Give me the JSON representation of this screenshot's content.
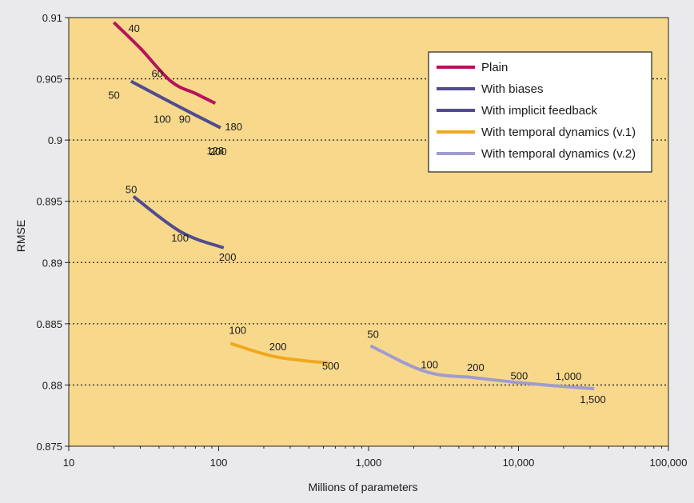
{
  "chart_data": {
    "type": "line",
    "title": "",
    "xlabel": "Millions of parameters",
    "ylabel": "RMSE",
    "xscale": "log",
    "xlim": [
      10,
      100000
    ],
    "ylim": [
      0.875,
      0.91
    ],
    "x_ticks": [
      10,
      100,
      1000,
      10000,
      100000
    ],
    "x_tick_labels": [
      "10",
      "100",
      "1,000",
      "10,000",
      "100,000"
    ],
    "y_ticks": [
      0.875,
      0.88,
      0.885,
      0.89,
      0.895,
      0.9,
      0.905,
      0.91
    ],
    "y_tick_labels": [
      "0.875",
      "0.88",
      "0.885",
      "0.89",
      "0.895",
      "0.9",
      "0.905",
      "0.91"
    ],
    "grid": "horizontal dotted",
    "legend_position": "top-right",
    "colors": {
      "plot_bg": "#f8d98c",
      "page_bg": "#eaeaec",
      "gridline": "#222222",
      "axis": "#222222"
    },
    "series": [
      {
        "name": "Plain",
        "color": "#b5135a",
        "x": [
          20,
          30,
          48,
          70,
          95
        ],
        "y": [
          0.9096,
          0.9075,
          0.9048,
          0.9038,
          0.903
        ],
        "labels": [
          "40",
          "60",
          "90",
          "128",
          "180"
        ]
      },
      {
        "name": "With biases",
        "color": "#524b8e",
        "x": [
          26,
          57,
          103
        ],
        "y": [
          0.9048,
          0.9026,
          0.901
        ],
        "labels": [
          "50",
          "100",
          "200"
        ]
      },
      {
        "name": "With implicit feedback",
        "color": "#524b8e",
        "x": [
          27,
          56,
          108
        ],
        "y": [
          0.8954,
          0.8925,
          0.8912
        ],
        "labels": [
          "50",
          "100",
          "200"
        ]
      },
      {
        "name": "With temporal dynamics (v.1)",
        "color": "#f0a81c",
        "x": [
          120,
          240,
          540
        ],
        "y": [
          0.8834,
          0.8823,
          0.8818
        ],
        "labels": [
          "100",
          "200",
          "500"
        ]
      },
      {
        "name": "With temporal dynamics (v.2)",
        "color": "#a09ccf",
        "x": [
          1030,
          2400,
          5000,
          10000,
          19000,
          32000
        ],
        "y": [
          0.8832,
          0.8811,
          0.8806,
          0.8802,
          0.8799,
          0.8797
        ],
        "labels": [
          "50",
          "100",
          "200",
          "500",
          "1,000",
          "1,500"
        ]
      }
    ]
  }
}
